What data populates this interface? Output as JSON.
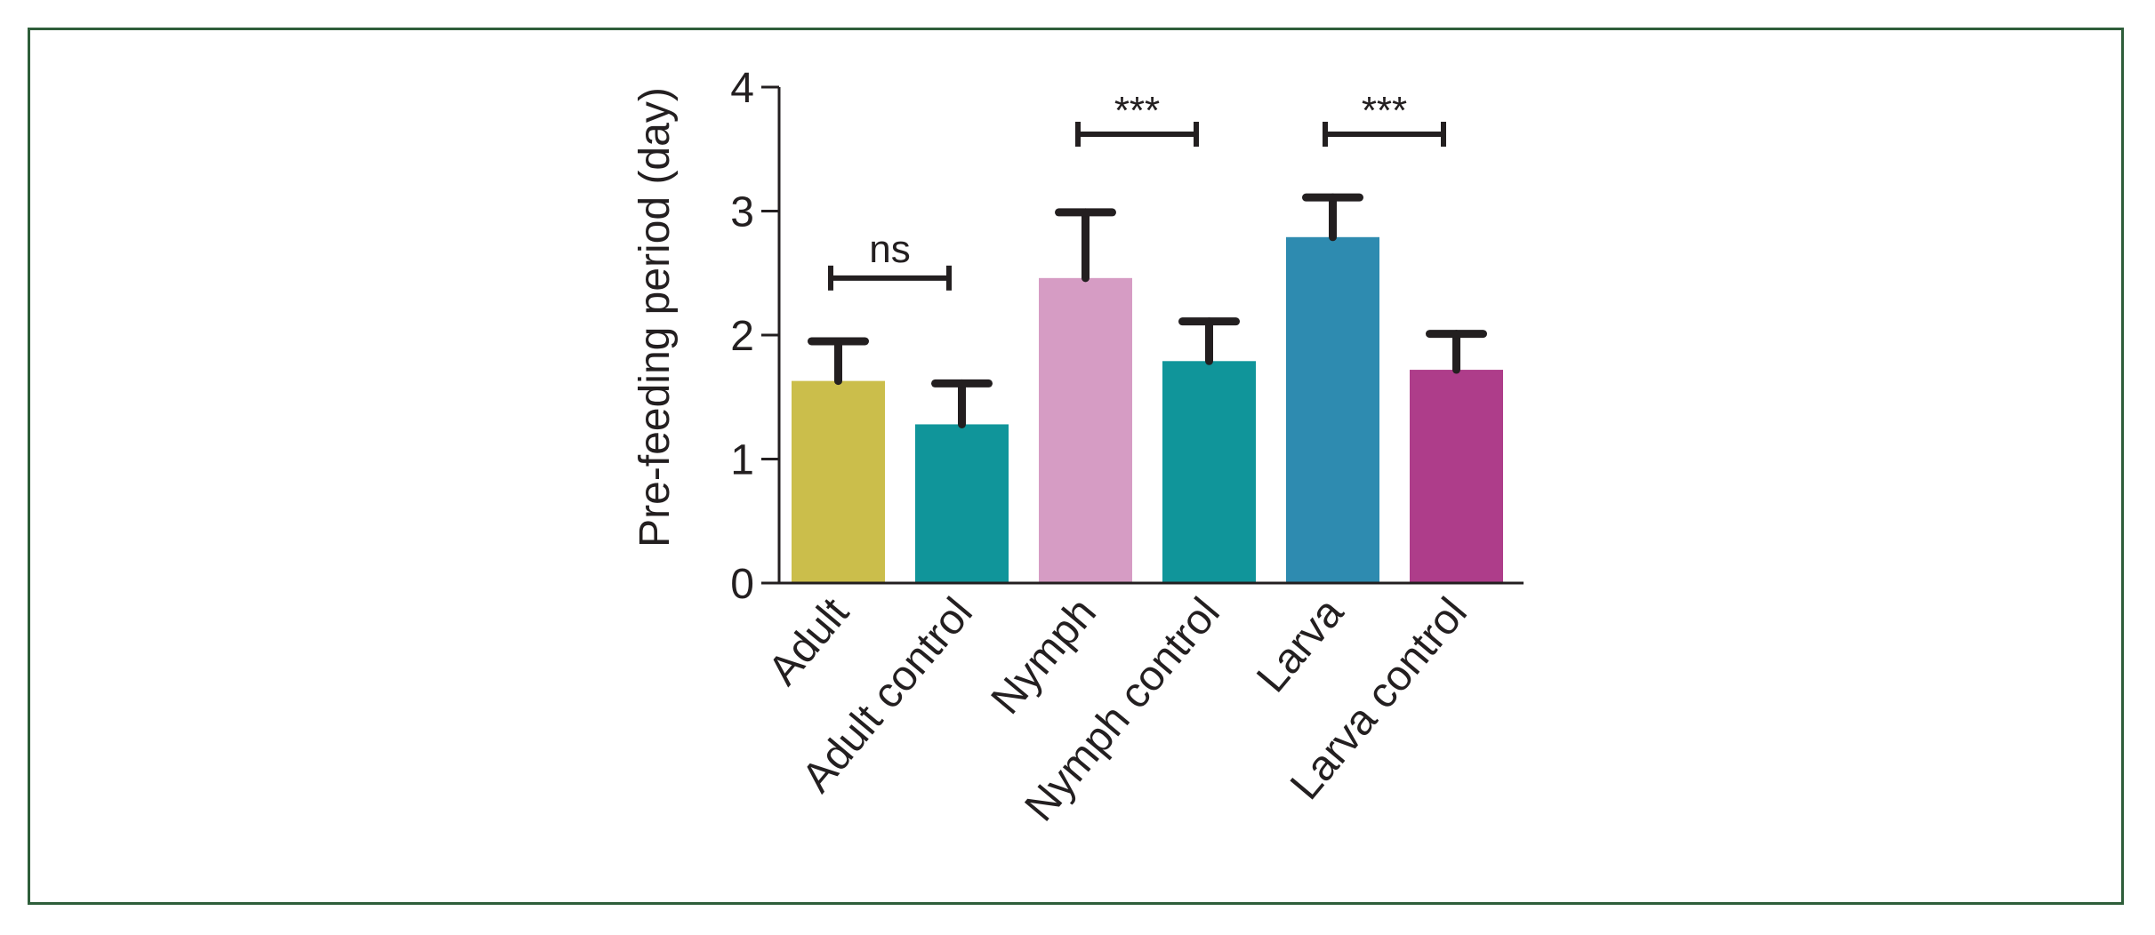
{
  "chart_data": {
    "type": "bar",
    "title": "",
    "xlabel": "",
    "ylabel": "Pre-feeding period (day)",
    "ylim": [
      0,
      4
    ],
    "yticks": [
      0,
      1,
      2,
      3,
      4
    ],
    "grid": false,
    "categories": [
      "Adult",
      "Adult control",
      "Nymph",
      "Nymph control",
      "Larva",
      "Larva control"
    ],
    "values": [
      1.63,
      1.28,
      2.46,
      1.79,
      2.79,
      1.72
    ],
    "errors": [
      0.32,
      0.33,
      0.53,
      0.32,
      0.32,
      0.29
    ],
    "colors": [
      "#cbbe4b",
      "#10959a",
      "#d69cc4",
      "#10959a",
      "#2e8bb0",
      "#ae3d8a"
    ],
    "significance": [
      {
        "pair": [
          0,
          1
        ],
        "label": "ns",
        "y": 2.46
      },
      {
        "pair": [
          2,
          3
        ],
        "label": "***",
        "y": 3.62
      },
      {
        "pair": [
          4,
          5
        ],
        "label": "***",
        "y": 3.62
      }
    ]
  }
}
